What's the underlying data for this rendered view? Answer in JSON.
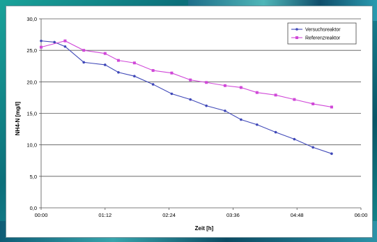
{
  "chart_data": {
    "type": "line",
    "title": "",
    "xlabel": "Zeit [h]",
    "ylabel": "NH4-N [mg/l]",
    "ylim": [
      0,
      30
    ],
    "yticks": [
      0,
      5,
      10,
      15,
      20,
      25,
      30
    ],
    "ytick_labels": [
      "0,0",
      "5,0",
      "10,0",
      "15,0",
      "20,0",
      "25,0",
      "30,0"
    ],
    "xlim_hours": [
      0,
      6
    ],
    "xticks_hours": [
      0,
      1.2,
      2.4,
      3.6,
      4.8,
      6
    ],
    "xtick_labels": [
      "00:00",
      "01:12",
      "02:24",
      "03:36",
      "04:48",
      "06:00"
    ],
    "grid": "horizontal",
    "legend_position": "top-right",
    "series": [
      {
        "name": "Versuchsreaktor",
        "color": "#3f48b8",
        "x_hours": [
          0,
          0.25,
          0.45,
          0.8,
          1.2,
          1.45,
          1.75,
          2.1,
          2.45,
          2.8,
          3.1,
          3.45,
          3.75,
          4.05,
          4.4,
          4.75,
          5.1,
          5.45
        ],
        "y": [
          26.5,
          26.3,
          25.6,
          23.1,
          22.7,
          21.5,
          20.9,
          19.6,
          18.1,
          17.2,
          16.2,
          15.4,
          14.0,
          13.2,
          12.0,
          10.9,
          9.6,
          8.6
        ]
      },
      {
        "name": "Referenzreaktor",
        "color": "#d048d8",
        "x_hours": [
          0,
          0.45,
          0.8,
          1.2,
          1.45,
          1.75,
          2.1,
          2.45,
          2.8,
          3.1,
          3.45,
          3.75,
          4.05,
          4.4,
          4.75,
          5.1,
          5.45
        ],
        "y": [
          25.5,
          26.5,
          25.0,
          24.5,
          23.4,
          23.0,
          21.8,
          21.4,
          20.3,
          19.9,
          19.4,
          19.1,
          18.3,
          17.9,
          17.2,
          16.5,
          16.0
        ]
      }
    ]
  }
}
